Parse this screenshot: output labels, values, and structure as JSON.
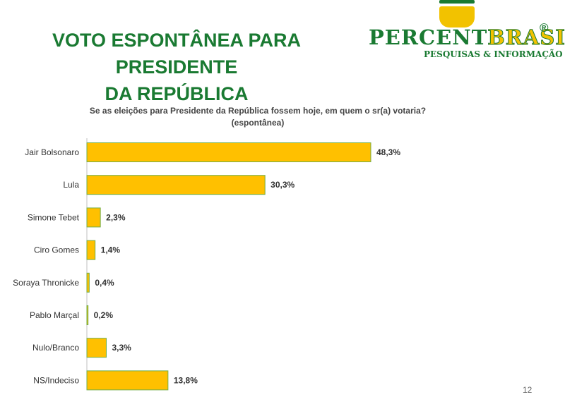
{
  "header": {
    "title_line1": "VOTO ESPONTÂNEA PARA PRESIDENTE",
    "title_line2": "DA REPÚBLICA"
  },
  "logo": {
    "brand_part1": "PERCENT",
    "brand_part2": "BRASIL",
    "registered": "®",
    "tagline": "PESQUISAS & INFORMAÇÃO"
  },
  "colors": {
    "title_green": "#1a7a32",
    "bar_fill": "#ffc000",
    "bar_border": "#70ad47"
  },
  "chart_data": {
    "type": "bar",
    "orientation": "horizontal",
    "title": "Se as eleições para Presidente da República fossem hoje, em quem o sr(a) votaria?",
    "subtitle": "(espontânea)",
    "categories": [
      "Jair Bolsonaro",
      "Lula",
      "Simone Tebet",
      "Ciro Gomes",
      "Soraya Thronicke",
      "Pablo Marçal",
      "Nulo/Branco",
      "NS/Indeciso"
    ],
    "values": [
      48.3,
      30.3,
      2.3,
      1.4,
      0.4,
      0.2,
      3.3,
      13.8
    ],
    "data_labels": [
      "48,3%",
      "30,3%",
      "2,3%",
      "1,4%",
      "0,4%",
      "0,2%",
      "3,3%",
      "13,8%"
    ],
    "xlim": [
      0,
      48.3
    ],
    "grid": false,
    "legend": "none"
  },
  "footer": {
    "page_number": "12"
  }
}
